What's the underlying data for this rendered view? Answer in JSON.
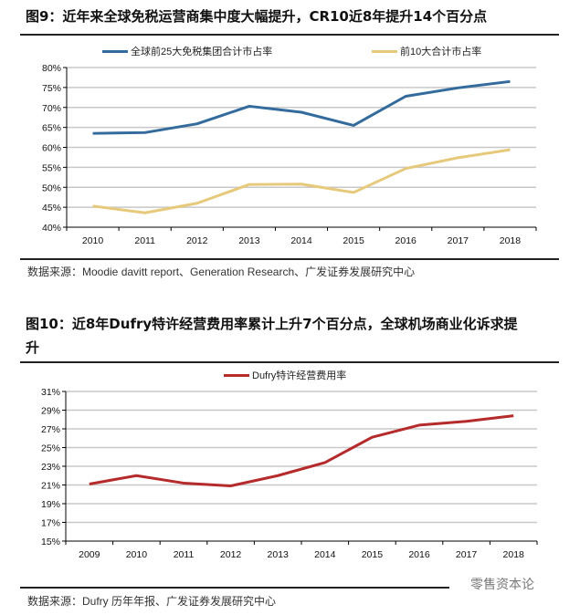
{
  "figure1": {
    "title": "图9：近年来全球免税运营商集中度大幅提升，CR10近8年提升14个百分点",
    "source": "数据来源：Moodie davitt report、Generation Research、广发证券发展研究中心"
  },
  "figure2": {
    "title_line1": "图10：近8年Dufry特许经营费用率累计上升7个百分点，全球机场商业化诉求提",
    "title_line2": "升",
    "source": "数据来源：Dufry 历年年报、广发证券发展研究中心"
  },
  "watermark": "零售资本论",
  "chart_data": [
    {
      "type": "line",
      "categories": [
        "2010",
        "2011",
        "2012",
        "2013",
        "2014",
        "2015",
        "2016",
        "2017",
        "2018"
      ],
      "series": [
        {
          "name": "全球前25大免税集团合计市占率",
          "color": "#336b9c",
          "values": [
            63.5,
            63.7,
            65.9,
            70.3,
            68.8,
            65.5,
            72.8,
            74.9,
            76.5
          ]
        },
        {
          "name": "前10大合计市占率",
          "color": "#e6c97a",
          "values": [
            45.3,
            43.6,
            46.0,
            50.7,
            50.8,
            48.7,
            54.7,
            57.4,
            59.4
          ]
        }
      ],
      "ylim": [
        40,
        80
      ],
      "yticks": [
        40,
        45,
        50,
        55,
        60,
        65,
        70,
        75,
        80
      ],
      "yunit": "%",
      "grid": true,
      "legend": "top"
    },
    {
      "type": "line",
      "categories": [
        "2009",
        "2010",
        "2011",
        "2012",
        "2013",
        "2014",
        "2015",
        "2016",
        "2017",
        "2018"
      ],
      "series": [
        {
          "name": "Dufry特许经营费用率",
          "color": "#b52a2a",
          "values": [
            21.1,
            22.0,
            21.2,
            20.9,
            22.0,
            23.4,
            26.1,
            27.4,
            27.8,
            28.4
          ]
        }
      ],
      "ylim": [
        15,
        31
      ],
      "yticks": [
        15,
        17,
        19,
        21,
        23,
        25,
        27,
        29,
        31
      ],
      "yunit": "%",
      "grid": true,
      "legend": "top"
    }
  ]
}
